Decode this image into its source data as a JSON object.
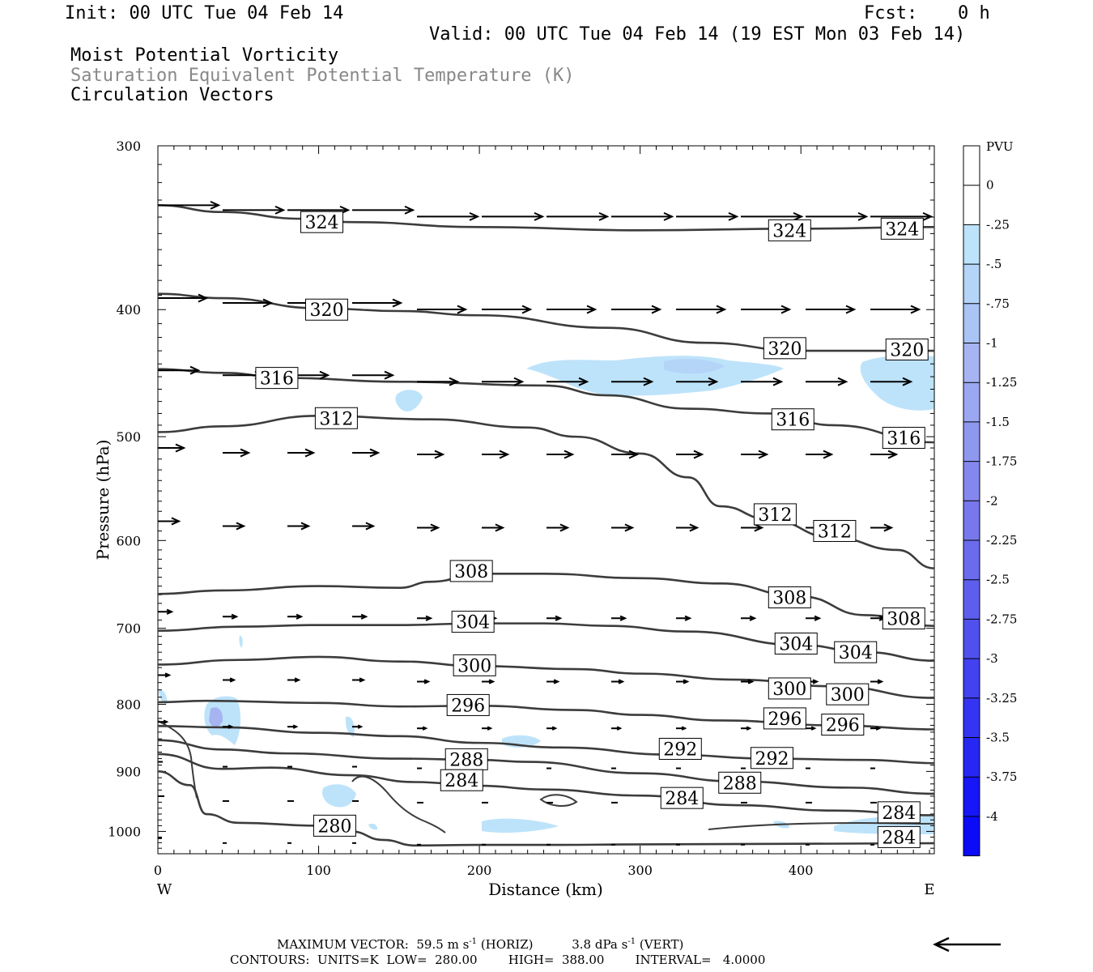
{
  "header": {
    "init": "Init: 00 UTC Tue 04 Feb 14",
    "fcst_label": "Fcst:",
    "fcst_value": "0 h",
    "valid": "Valid: 00 UTC Tue 04 Feb 14 (19 EST Mon 03 Feb 14)"
  },
  "titles": {
    "line1": "Moist Potential Vorticity",
    "line2": "Saturation Equivalent Potential Temperature (K)",
    "line3": "Circulation Vectors"
  },
  "colors": {
    "contour": "#3c3c3c",
    "title2": "#888888",
    "light_blue": "#bde3fa",
    "mid_blue": "#a6b4f2"
  },
  "chart_data": {
    "type": "cross-section",
    "xlabel": "Distance (km)",
    "ylabel": "Pressure (hPa)",
    "xlim": [
      0,
      483
    ],
    "ylim": [
      1040,
      300
    ],
    "y_log_scale": true,
    "x_ticks": [
      0,
      100,
      200,
      300,
      400
    ],
    "y_ticks": [
      300,
      400,
      500,
      600,
      700,
      800,
      900,
      1000
    ],
    "x_end_labels": {
      "left": "W",
      "right": "E"
    },
    "colorbar": {
      "title": "PVU",
      "labels": [
        "0",
        "-.25",
        "-.5",
        "-.75",
        "-1",
        "-1.25",
        "-1.5",
        "-1.75",
        "-2",
        "-2.25",
        "-2.5",
        "-2.75",
        "-3",
        "-3.25",
        "-3.5",
        "-3.75",
        "-4"
      ],
      "colors": [
        "#ffffff",
        "#ffffff",
        "#bde3fa",
        "#b4d4f8",
        "#aac4f6",
        "#a6b4f2",
        "#9ba7f0",
        "#8f98ef",
        "#8488ee",
        "#7878ec",
        "#6b6bed",
        "#5e5eee",
        "#5050ef",
        "#4242f0",
        "#3434f2",
        "#2727f4",
        "#1616f6",
        "#0b0bf8"
      ]
    },
    "theta_es_contours": [
      {
        "value": 324,
        "points": [
          [
            0,
            333
          ],
          [
            40,
            337
          ],
          [
            90,
            341
          ],
          [
            120,
            343
          ],
          [
            200,
            346
          ],
          [
            300,
            348
          ],
          [
            400,
            347
          ],
          [
            483,
            346
          ]
        ],
        "labels": [
          [
            102,
            343
          ],
          [
            393,
            348
          ],
          [
            463,
            347
          ]
        ]
      },
      {
        "value": 320,
        "points": [
          [
            0,
            389
          ],
          [
            40,
            392
          ],
          [
            100,
            399
          ],
          [
            150,
            401
          ],
          [
            200,
            404
          ],
          [
            280,
            413
          ],
          [
            340,
            424
          ],
          [
            400,
            430
          ],
          [
            483,
            430
          ]
        ],
        "labels": [
          [
            105,
            400
          ],
          [
            390,
            428
          ],
          [
            466,
            429
          ]
        ]
      },
      {
        "value": 316,
        "points": [
          [
            0,
            444
          ],
          [
            40,
            447
          ],
          [
            80,
            451
          ],
          [
            150,
            454
          ],
          [
            240,
            457
          ],
          [
            280,
            465
          ],
          [
            330,
            476
          ],
          [
            380,
            480
          ],
          [
            420,
            490
          ],
          [
            483,
            505
          ]
        ],
        "labels": [
          [
            74,
            451
          ],
          [
            395,
            485
          ],
          [
            464,
            501
          ]
        ]
      },
      {
        "value": 312,
        "points": [
          [
            0,
            496
          ],
          [
            40,
            491
          ],
          [
            100,
            482
          ],
          [
            170,
            485
          ],
          [
            230,
            492
          ],
          [
            260,
            500
          ],
          [
            300,
            515
          ],
          [
            330,
            537
          ],
          [
            350,
            565
          ],
          [
            380,
            578
          ],
          [
            420,
            597
          ],
          [
            460,
            610
          ],
          [
            483,
            630
          ]
        ],
        "labels": [
          [
            111,
            484
          ],
          [
            384,
            573
          ],
          [
            421,
            590
          ]
        ]
      },
      {
        "value": 308,
        "points": [
          [
            0,
            659
          ],
          [
            40,
            655
          ],
          [
            100,
            650
          ],
          [
            150,
            652
          ],
          [
            170,
            645
          ],
          [
            200,
            636
          ],
          [
            240,
            636
          ],
          [
            300,
            641
          ],
          [
            350,
            647
          ],
          [
            400,
            662
          ],
          [
            440,
            684
          ],
          [
            483,
            697
          ]
        ],
        "labels": [
          [
            195,
            633
          ],
          [
            393,
            663
          ],
          [
            464,
            688
          ]
        ]
      },
      {
        "value": 304,
        "points": [
          [
            0,
            703
          ],
          [
            50,
            698
          ],
          [
            100,
            696
          ],
          [
            150,
            696
          ],
          [
            200,
            694
          ],
          [
            240,
            694
          ],
          [
            280,
            697
          ],
          [
            330,
            704
          ],
          [
            400,
            721
          ],
          [
            440,
            730
          ],
          [
            483,
            741
          ]
        ],
        "labels": [
          [
            196,
            692
          ],
          [
            397,
            719
          ],
          [
            434,
            730
          ]
        ]
      },
      {
        "value": 300,
        "points": [
          [
            0,
            746
          ],
          [
            50,
            740
          ],
          [
            100,
            736
          ],
          [
            150,
            742
          ],
          [
            200,
            748
          ],
          [
            260,
            752
          ],
          [
            300,
            758
          ],
          [
            360,
            766
          ],
          [
            420,
            775
          ],
          [
            483,
            791
          ]
        ],
        "labels": [
          [
            197,
            747
          ],
          [
            393,
            778
          ],
          [
            429,
            786
          ]
        ]
      },
      {
        "value": 296,
        "points": [
          [
            0,
            797
          ],
          [
            30,
            795
          ],
          [
            100,
            798
          ],
          [
            150,
            803
          ],
          [
            200,
            802
          ],
          [
            260,
            808
          ],
          [
            300,
            815
          ],
          [
            350,
            823
          ],
          [
            420,
            830
          ],
          [
            483,
            836
          ]
        ],
        "labels": [
          [
            193,
            801
          ],
          [
            390,
            820
          ],
          [
            426,
            829
          ]
        ]
      },
      {
        "value": 292,
        "points": [
          [
            0,
            831
          ],
          [
            40,
            833
          ],
          [
            100,
            841
          ],
          [
            150,
            846
          ],
          [
            200,
            856
          ],
          [
            250,
            863
          ],
          [
            320,
            874
          ],
          [
            380,
            880
          ],
          [
            440,
            882
          ],
          [
            483,
            887
          ]
        ],
        "labels": [
          [
            325,
            865
          ],
          [
            382,
            879
          ]
        ]
      },
      {
        "value": 288,
        "points": [
          [
            0,
            852
          ],
          [
            40,
            866
          ],
          [
            80,
            872
          ],
          [
            150,
            880
          ],
          [
            200,
            882
          ],
          [
            230,
            885
          ],
          [
            300,
            903
          ],
          [
            360,
            916
          ],
          [
            430,
            926
          ],
          [
            483,
            936
          ]
        ],
        "labels": [
          [
            192,
            881
          ],
          [
            362,
            918
          ]
        ]
      },
      {
        "value": 284,
        "points": [
          [
            0,
            873
          ],
          [
            40,
            896
          ],
          [
            70,
            894
          ],
          [
            120,
            906
          ],
          [
            160,
            917
          ],
          [
            200,
            923
          ],
          [
            240,
            929
          ],
          [
            300,
            939
          ],
          [
            360,
            955
          ],
          [
            420,
            964
          ],
          [
            483,
            972
          ]
        ],
        "labels": [
          [
            189,
            914
          ],
          [
            326,
            943
          ],
          [
            461,
            967
          ],
          [
            461,
            1010
          ]
        ]
      },
      {
        "value": 280,
        "points": [
          [
            0,
            900
          ],
          [
            20,
            922
          ],
          [
            30,
            970
          ],
          [
            50,
            985
          ],
          [
            100,
            990
          ],
          [
            120,
            1000
          ],
          [
            140,
            1015
          ],
          [
            160,
            1025
          ],
          [
            200,
            1024
          ],
          [
            250,
            1024
          ],
          [
            300,
            1023
          ],
          [
            400,
            1022
          ],
          [
            483,
            1021
          ]
        ],
        "labels": [
          [
            110,
            990
          ]
        ]
      }
    ],
    "max_vector": {
      "label": "MAXIMUM VECTOR:",
      "horiz_value": "59.5",
      "horiz_unit": "m s",
      "horiz_exp": "-1",
      "horiz_tag": "(HORIZ)",
      "vert_value": "3.8",
      "vert_unit": "dPa s",
      "vert_exp": "-1",
      "vert_tag": "(VERT)"
    },
    "contours_info": {
      "label": "CONTOURS:",
      "units": "UNITS=K",
      "low": "LOW=",
      "low_value": "280.00",
      "high": "HIGH=",
      "high_value": "388.00",
      "interval": "INTERVAL=",
      "interval_value": "4.0000"
    }
  }
}
